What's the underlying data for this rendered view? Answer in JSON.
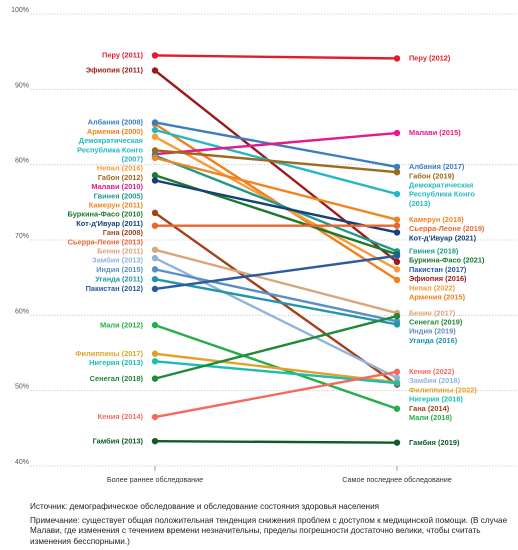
{
  "chart_data": {
    "type": "line",
    "x": [
      "Более раннее обследование",
      "Самое последнее обследование"
    ],
    "ylim": [
      40,
      100
    ],
    "y_ticks": [
      "40%",
      "50%",
      "60%",
      "70%",
      "80%",
      "90%",
      "100%"
    ],
    "grid": true,
    "series": [
      {
        "name": "Перу",
        "left_label": "Перу (2011)",
        "right_label": "Перу (2012)",
        "values": [
          94.5,
          94.1
        ],
        "color": "#e41b2e"
      },
      {
        "name": "Эфиопия",
        "left_label": "Эфиопия (2011)",
        "right_label": "Эфиопия (2016)",
        "values": [
          92.5,
          67.1
        ],
        "color": "#9b1b1b"
      },
      {
        "name": "Армения",
        "left_label": "Армения (2000)",
        "right_label": "Армения (2015)",
        "values": [
          85.4,
          64.7
        ],
        "color": "#f0801c"
      },
      {
        "name": "Албания",
        "left_label": "Албания (2008)",
        "right_label": "Албания (2017)",
        "values": [
          85.6,
          79.7
        ],
        "color": "#3b7dc0"
      },
      {
        "name": "Демократическая Республика Конго",
        "left_label": "Демократическая Республика Конго (2007)",
        "right_label": "Демократическая Республика Конго (2013)",
        "values": [
          84.6,
          76.1
        ],
        "color": "#25b8c4"
      },
      {
        "name": "Непал",
        "left_label": "Непал (2016)",
        "right_label": "Непал (2022)",
        "values": [
          83.7,
          66.1
        ],
        "color": "#f79b3a"
      },
      {
        "name": "Малави",
        "left_label": "Малави (2010)",
        "right_label": "Малави (2015)",
        "values": [
          81.4,
          84.2
        ],
        "color": "#e5198a"
      },
      {
        "name": "Габон",
        "left_label": "Габон (2012)",
        "right_label": "Габон (2019)",
        "values": [
          81.9,
          79.0
        ],
        "color": "#9c6a1a"
      },
      {
        "name": "Гвинея",
        "left_label": "Гвинея (2005)",
        "right_label": "Гвинея (2018)",
        "values": [
          81.2,
          68.5
        ],
        "color": "#1f9a8a"
      },
      {
        "name": "Камерун",
        "left_label": "Камерун (2011)",
        "right_label": "Камерун (2018)",
        "values": [
          80.9,
          72.7
        ],
        "color": "#f08524"
      },
      {
        "name": "Буркина-Фасо",
        "left_label": "Буркина-Фасо (2010)",
        "right_label": "Буркина-Фасо (2021)",
        "values": [
          78.6,
          68.1
        ],
        "color": "#1c7a2c"
      },
      {
        "name": "Кот-д'Ивуар",
        "left_label": "Кот-д'Ивуар (2011)",
        "right_label": "Кот-д'Ивуар (2021)",
        "values": [
          77.9,
          71.0
        ],
        "color": "#16407a"
      },
      {
        "name": "Гана",
        "left_label": "Гана (2008)",
        "right_label": "Гана (2014)",
        "values": [
          73.6,
          50.8
        ],
        "color": "#a2441a"
      },
      {
        "name": "Сьерра-Леоне",
        "left_label": "Сьерра-Леоне (2013)",
        "right_label": "Сьерра-Леоне (2019)",
        "values": [
          71.9,
          71.9
        ],
        "color": "#e8672e"
      },
      {
        "name": "Бенин",
        "left_label": "Бенин (2011)",
        "right_label": "Бенин (2017)",
        "values": [
          68.7,
          60.3
        ],
        "color": "#d9a57a"
      },
      {
        "name": "Замбия",
        "left_label": "Замбия (2013)",
        "right_label": "Замбия (2018)",
        "values": [
          67.6,
          51.7
        ],
        "color": "#8fb4dc"
      },
      {
        "name": "Индия",
        "left_label": "Индия (2015)",
        "right_label": "Индия (2019)",
        "values": [
          66.1,
          59.2
        ],
        "color": "#5b8fc4"
      },
      {
        "name": "Уганда",
        "left_label": "Уганда (2011)",
        "right_label": "Уганда (2016)",
        "values": [
          64.8,
          58.8
        ],
        "color": "#2296a8"
      },
      {
        "name": "Пакистан",
        "left_label": "Пакистан (2012)",
        "right_label": "Пакистан (2017)",
        "values": [
          63.5,
          67.9
        ],
        "color": "#2a5aa0"
      },
      {
        "name": "Мали",
        "left_label": "Мали (2012)",
        "right_label": "Мали (2018)",
        "values": [
          58.7,
          47.6
        ],
        "color": "#27ae4a"
      },
      {
        "name": "Филиппины",
        "left_label": "Филиппины (2017)",
        "right_label": "Филиппины (2022)",
        "values": [
          54.9,
          51.1
        ],
        "color": "#e1a22a"
      },
      {
        "name": "Нигерия",
        "left_label": "Нигерия (2013)",
        "right_label": "Нигерия (2018)",
        "values": [
          53.9,
          51.0
        ],
        "color": "#18bfb0"
      },
      {
        "name": "Сенегал",
        "left_label": "Сенегал (2018)",
        "right_label": "Сенегал (2019)",
        "values": [
          51.6,
          59.9
        ],
        "color": "#1e8a3a"
      },
      {
        "name": "Кения",
        "left_label": "Кения (2014)",
        "right_label": "Кения (2022)",
        "values": [
          46.5,
          52.5
        ],
        "color": "#f26b5e"
      },
      {
        "name": "Гамбия",
        "left_label": "Гамбия (2013)",
        "right_label": "Гамбия (2019)",
        "values": [
          43.3,
          43.1
        ],
        "color": "#0f5a28"
      }
    ]
  },
  "notes": {
    "source": "Источник: демографическое обследование и обследование состояния здоровья населения",
    "remark": "Примечание: существует общая положительная тенденция снижения проблем с доступом к медицинской помощи. (В случае Малави, где изменения с течением времени незначительны, пределы погрешности достаточно велики, чтобы считать изменения бесспорными.)"
  }
}
